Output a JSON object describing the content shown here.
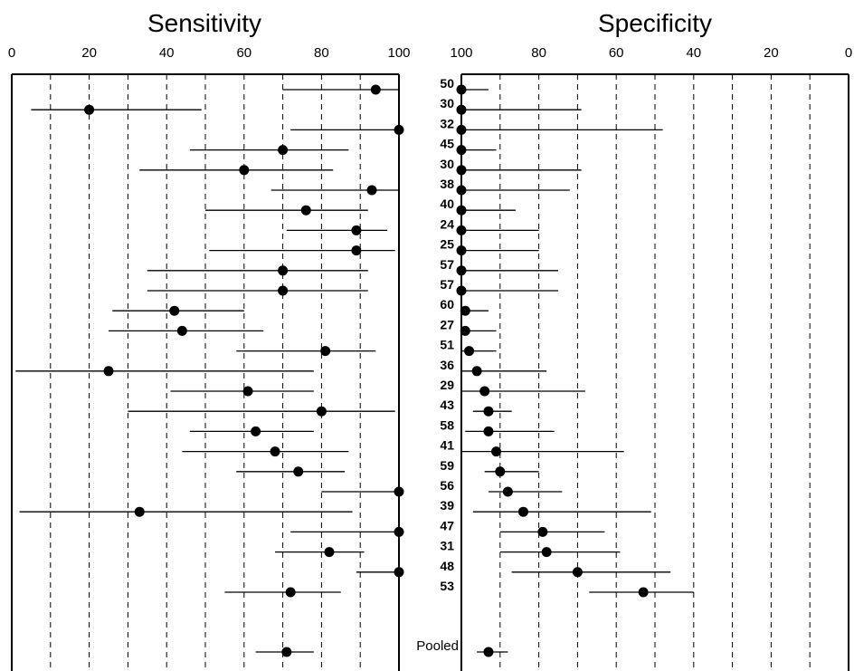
{
  "chart_data": [
    {
      "type": "forest",
      "title": "Sensitivity",
      "xlim": [
        0,
        100
      ],
      "ticks": [
        0,
        20,
        40,
        60,
        80,
        100
      ],
      "grid": "vertical dashed every 10",
      "studies": [
        {
          "est": 94,
          "lo": 70,
          "hi": 100
        },
        {
          "est": 20,
          "lo": 5,
          "hi": 49
        },
        {
          "est": 100,
          "lo": 72,
          "hi": 100
        },
        {
          "est": 70,
          "lo": 46,
          "hi": 87
        },
        {
          "est": 60,
          "lo": 33,
          "hi": 83
        },
        {
          "est": 93,
          "lo": 67,
          "hi": 100
        },
        {
          "est": 76,
          "lo": 50,
          "hi": 92
        },
        {
          "est": 89,
          "lo": 71,
          "hi": 97
        },
        {
          "est": 89,
          "lo": 51,
          "hi": 99
        },
        {
          "est": 70,
          "lo": 35,
          "hi": 92
        },
        {
          "est": 70,
          "lo": 35,
          "hi": 92
        },
        {
          "est": 42,
          "lo": 26,
          "hi": 60
        },
        {
          "est": 44,
          "lo": 25,
          "hi": 65
        },
        {
          "est": 81,
          "lo": 58,
          "hi": 94
        },
        {
          "est": 25,
          "lo": 1,
          "hi": 78
        },
        {
          "est": 61,
          "lo": 41,
          "hi": 78
        },
        {
          "est": 80,
          "lo": 30,
          "hi": 99
        },
        {
          "est": 63,
          "lo": 46,
          "hi": 78
        },
        {
          "est": 68,
          "lo": 44,
          "hi": 87
        },
        {
          "est": 74,
          "lo": 58,
          "hi": 86
        },
        {
          "est": 100,
          "lo": 80,
          "hi": 100
        },
        {
          "est": 33,
          "lo": 2,
          "hi": 88
        },
        {
          "est": 100,
          "lo": 72,
          "hi": 100
        },
        {
          "est": 82,
          "lo": 68,
          "hi": 91
        },
        {
          "est": 100,
          "lo": 89,
          "hi": 100
        },
        {
          "est": 72,
          "lo": 55,
          "hi": 85
        }
      ],
      "pooled": {
        "est": 71,
        "lo": 63,
        "hi": 78
      }
    },
    {
      "type": "forest",
      "title": "Specificity",
      "xlim": [
        100,
        0
      ],
      "ticks": [
        100,
        80,
        60,
        40,
        20,
        0
      ],
      "grid": "vertical dashed every 10",
      "studies": [
        {
          "n": "50",
          "est": 100,
          "lo": 93,
          "hi": 100
        },
        {
          "n": "30",
          "est": 100,
          "lo": 69,
          "hi": 100
        },
        {
          "n": "32",
          "est": 100,
          "lo": 48,
          "hi": 100
        },
        {
          "n": "45",
          "est": 100,
          "lo": 91,
          "hi": 100
        },
        {
          "n": "30",
          "est": 100,
          "lo": 69,
          "hi": 100
        },
        {
          "n": "38",
          "est": 100,
          "lo": 72,
          "hi": 100
        },
        {
          "n": "40",
          "est": 100,
          "lo": 86,
          "hi": 100
        },
        {
          "n": "24",
          "est": 100,
          "lo": 80,
          "hi": 100
        },
        {
          "n": "25",
          "est": 100,
          "lo": 80,
          "hi": 100
        },
        {
          "n": "57",
          "est": 100,
          "lo": 75,
          "hi": 100
        },
        {
          "n": "57",
          "est": 100,
          "lo": 75,
          "hi": 100
        },
        {
          "n": "60",
          "est": 99,
          "lo": 93,
          "hi": 100
        },
        {
          "n": "27",
          "est": 99,
          "lo": 91,
          "hi": 100
        },
        {
          "n": "51",
          "est": 98,
          "lo": 91,
          "hi": 100
        },
        {
          "n": "36",
          "est": 96,
          "lo": 78,
          "hi": 100
        },
        {
          "n": "29",
          "est": 94,
          "lo": 68,
          "hi": 100
        },
        {
          "n": "43",
          "est": 93,
          "lo": 87,
          "hi": 97
        },
        {
          "n": "58",
          "est": 93,
          "lo": 76,
          "hi": 99
        },
        {
          "n": "41",
          "est": 91,
          "lo": 58,
          "hi": 100
        },
        {
          "n": "59",
          "est": 90,
          "lo": 80,
          "hi": 94
        },
        {
          "n": "56",
          "est": 88,
          "lo": 74,
          "hi": 93
        },
        {
          "n": "39",
          "est": 84,
          "lo": 51,
          "hi": 97
        },
        {
          "n": "47",
          "est": 79,
          "lo": 63,
          "hi": 90
        },
        {
          "n": "31",
          "est": 78,
          "lo": 59,
          "hi": 90
        },
        {
          "n": "48",
          "est": 70,
          "lo": 46,
          "hi": 87
        },
        {
          "n": "53",
          "est": 53,
          "lo": 40,
          "hi": 67
        }
      ],
      "pooled": {
        "label": "Pooled",
        "est": 93,
        "lo": 88,
        "hi": 96
      }
    }
  ]
}
